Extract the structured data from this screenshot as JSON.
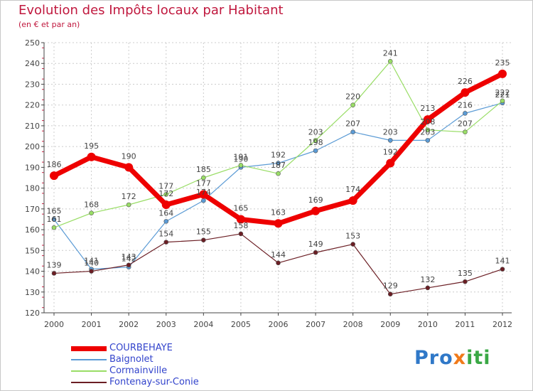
{
  "title": "Evolution des Impôts locaux par Habitant",
  "subtitle": "(en € et par an)",
  "brand": {
    "p1": "Pro",
    "p2": "x",
    "p3": "iti"
  },
  "colors": {
    "title": "#c0183e",
    "axis": "#444444",
    "grid": "#cccccc"
  },
  "chart_data": {
    "type": "line",
    "title": "Evolution des Impôts locaux par Habitant",
    "subtitle": "(en € et par an)",
    "x": [
      "2000",
      "2001",
      "2002",
      "2003",
      "2004",
      "2005",
      "2006",
      "2007",
      "2008",
      "2009",
      "2010",
      "2011",
      "2012"
    ],
    "ylim": [
      120,
      250
    ],
    "yticks": [
      120,
      130,
      140,
      150,
      160,
      170,
      180,
      190,
      200,
      210,
      220,
      230,
      240,
      250
    ],
    "grid": true,
    "legend_position": "bottom-left",
    "series": [
      {
        "name": "COURBEHAYE",
        "color": "#ee0000",
        "values": [
          186,
          195,
          190,
          172,
          177,
          165,
          163,
          169,
          174,
          192,
          213,
          226,
          235
        ],
        "labels": [
          "186",
          "195",
          "190",
          "172",
          "177",
          "165",
          "163",
          "169",
          "174",
          "192",
          "213",
          "226",
          "235"
        ],
        "thick": true
      },
      {
        "name": "Baignolet",
        "color": "#5b9bd5",
        "values": [
          165,
          141,
          142,
          164,
          174,
          190,
          192,
          198,
          207,
          203,
          203,
          216,
          221
        ],
        "labels": [
          "165",
          "141",
          "142",
          "164",
          "174",
          "190",
          "192",
          "198",
          "207",
          "203",
          "203",
          "216",
          "221"
        ],
        "thick": false
      },
      {
        "name": "Cormainville",
        "color": "#99dd66",
        "values": [
          161,
          168,
          172,
          177,
          185,
          191,
          187,
          203,
          220,
          241,
          208,
          207,
          222
        ],
        "labels": [
          "161",
          "168",
          "172",
          "177",
          "185",
          "191",
          "187",
          "203",
          "220",
          "241",
          "208",
          "207",
          "222"
        ],
        "thick": false
      },
      {
        "name": "Fontenay-sur-Conie",
        "color": "#6b1e24",
        "values": [
          139,
          140,
          143,
          154,
          155,
          158,
          144,
          149,
          153,
          129,
          132,
          135,
          141
        ],
        "labels": [
          "139",
          "140",
          "143",
          "154",
          "155",
          "158",
          "144",
          "149",
          "153",
          "129",
          "132",
          "135",
          "141"
        ],
        "thick": false
      }
    ]
  }
}
